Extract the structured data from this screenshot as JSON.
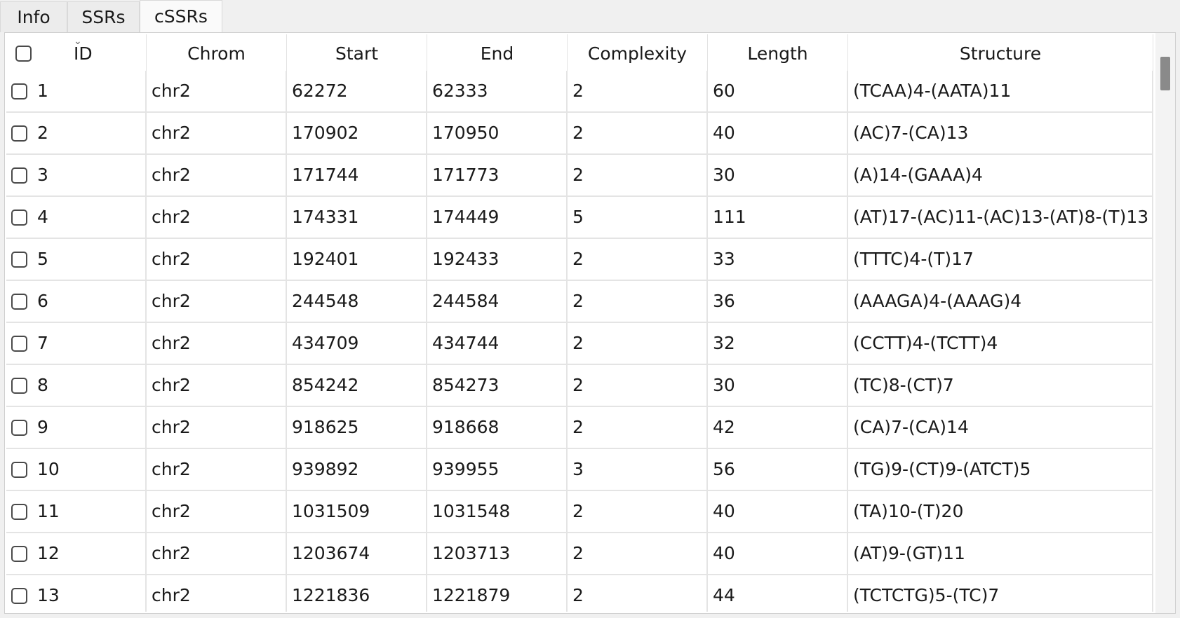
{
  "tabs": [
    "Info",
    "SSRs",
    "cSSRs"
  ],
  "active_tab": "cSSRs",
  "columns": [
    "ID",
    "Chrom",
    "Start",
    "End",
    "Complexity",
    "Length",
    "Structure"
  ],
  "rows": [
    {
      "id": "1",
      "chrom": "chr2",
      "start": "62272",
      "end": "62333",
      "complexity": "2",
      "length": "60",
      "structure": "(TCAA)4-(AATA)11"
    },
    {
      "id": "2",
      "chrom": "chr2",
      "start": "170902",
      "end": "170950",
      "complexity": "2",
      "length": "40",
      "structure": "(AC)7-(CA)13"
    },
    {
      "id": "3",
      "chrom": "chr2",
      "start": "171744",
      "end": "171773",
      "complexity": "2",
      "length": "30",
      "structure": "(A)14-(GAAA)4"
    },
    {
      "id": "4",
      "chrom": "chr2",
      "start": "174331",
      "end": "174449",
      "complexity": "5",
      "length": "111",
      "structure": "(AT)17-(AC)11-(AC)13-(AT)8-(T)13"
    },
    {
      "id": "5",
      "chrom": "chr2",
      "start": "192401",
      "end": "192433",
      "complexity": "2",
      "length": "33",
      "structure": "(TTTC)4-(T)17"
    },
    {
      "id": "6",
      "chrom": "chr2",
      "start": "244548",
      "end": "244584",
      "complexity": "2",
      "length": "36",
      "structure": "(AAAGA)4-(AAAG)4"
    },
    {
      "id": "7",
      "chrom": "chr2",
      "start": "434709",
      "end": "434744",
      "complexity": "2",
      "length": "32",
      "structure": "(CCTT)4-(TCTT)4"
    },
    {
      "id": "8",
      "chrom": "chr2",
      "start": "854242",
      "end": "854273",
      "complexity": "2",
      "length": "30",
      "structure": "(TC)8-(CT)7"
    },
    {
      "id": "9",
      "chrom": "chr2",
      "start": "918625",
      "end": "918668",
      "complexity": "2",
      "length": "42",
      "structure": "(CA)7-(CA)14"
    },
    {
      "id": "10",
      "chrom": "chr2",
      "start": "939892",
      "end": "939955",
      "complexity": "3",
      "length": "56",
      "structure": "(TG)9-(CT)9-(ATCT)5"
    },
    {
      "id": "11",
      "chrom": "chr2",
      "start": "1031509",
      "end": "1031548",
      "complexity": "2",
      "length": "40",
      "structure": "(TA)10-(T)20"
    },
    {
      "id": "12",
      "chrom": "chr2",
      "start": "1203674",
      "end": "1203713",
      "complexity": "2",
      "length": "40",
      "structure": "(AT)9-(GT)11"
    },
    {
      "id": "13",
      "chrom": "chr2",
      "start": "1221836",
      "end": "1221879",
      "complexity": "2",
      "length": "44",
      "structure": "(TCTCTG)5-(TC)7"
    }
  ],
  "icons": {
    "sort": "chevron-down-icon",
    "checkbox": "checkbox-icon"
  }
}
